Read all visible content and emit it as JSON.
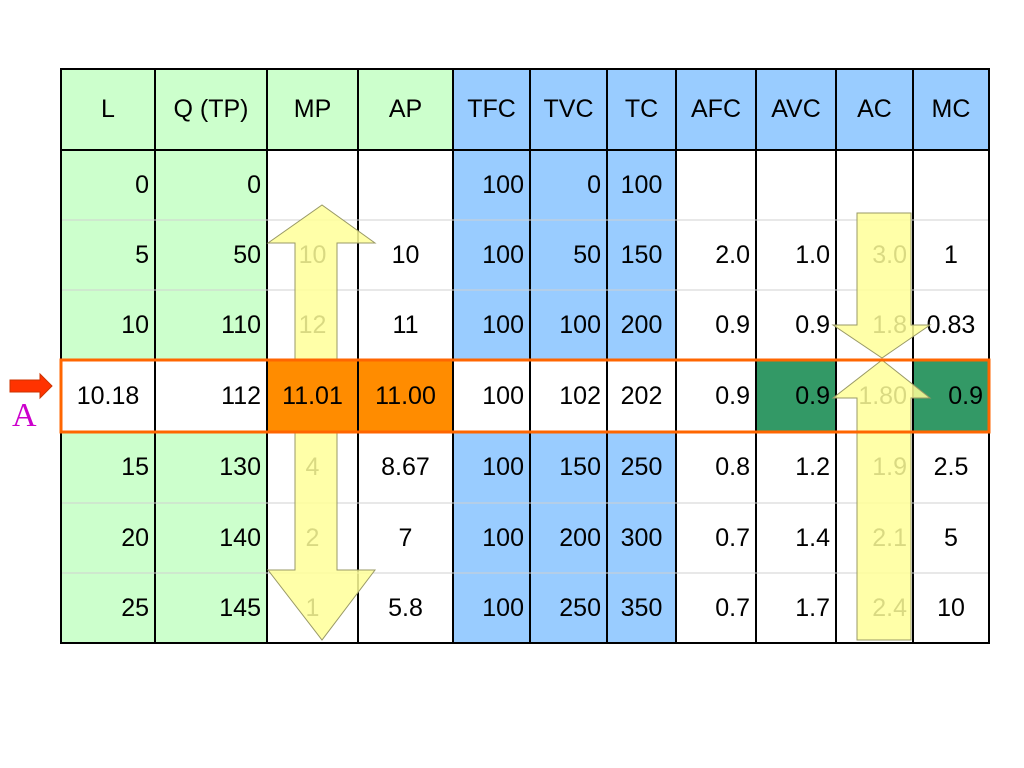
{
  "table": {
    "header": [
      "L",
      "Q (TP)",
      "MP",
      "AP",
      "TFC",
      "TVC",
      "TC",
      "AFC",
      "AVC",
      "AC",
      "MC"
    ],
    "rows": [
      [
        "0",
        "0",
        null,
        null,
        "100",
        "0",
        "100",
        null,
        null,
        null,
        null
      ],
      [
        "5",
        "50",
        "10",
        "10",
        "100",
        "50",
        "150",
        "2.0",
        "1.0",
        "3.0",
        "1"
      ],
      [
        "10",
        "110",
        "12",
        "11",
        "100",
        "100",
        "200",
        "0.9",
        "0.9",
        "1.8",
        "0.83"
      ],
      [
        "10.18",
        "112",
        "11.01",
        "11.00",
        "100",
        "102",
        "202",
        "0.9",
        "0.9",
        "1.80",
        "0.9"
      ],
      [
        "15",
        "130",
        "4",
        "8.67",
        "100",
        "150",
        "250",
        "0.8",
        "1.2",
        "1.9",
        "2.5"
      ],
      [
        "20",
        "140",
        "2",
        "7",
        "100",
        "200",
        "300",
        "0.7",
        "1.4",
        "2.1",
        "5"
      ],
      [
        "25",
        "145",
        "1",
        "5.8",
        "100",
        "250",
        "350",
        "0.7",
        "1.7",
        "2.4",
        "10"
      ]
    ]
  },
  "marker": "A"
}
